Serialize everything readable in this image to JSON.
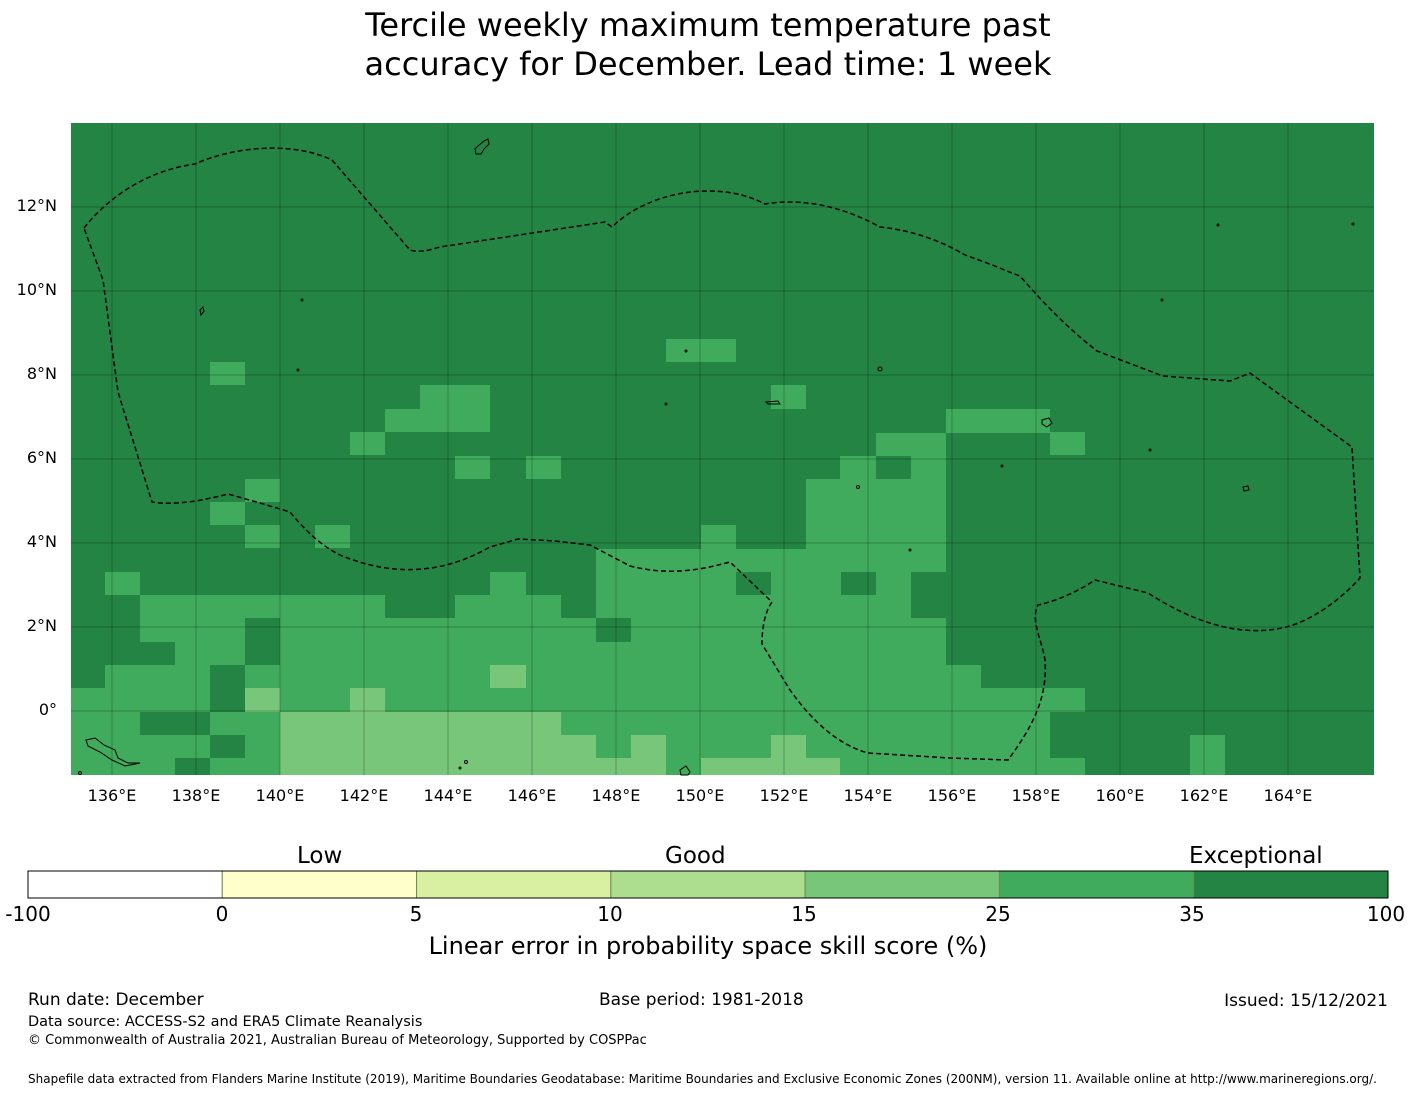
{
  "title": {
    "line1": "Tercile weekly maximum temperature past",
    "line2": "accuracy for December. Lead time: 1 week"
  },
  "map": {
    "lat_labels": [
      "12°N",
      "10°N",
      "8°N",
      "6°N",
      "4°N",
      "2°N",
      "0°"
    ],
    "lon_labels": [
      "136°E",
      "138°E",
      "140°E",
      "142°E",
      "144°E",
      "146°E",
      "148°E",
      "150°E",
      "152°E",
      "154°E",
      "156°E",
      "158°E",
      "160°E",
      "162°E",
      "164°E"
    ],
    "colors": {
      "exceptional": "#238443",
      "good_high": "#41ab5d",
      "good_mid": "#78c679",
      "good_low": "#addd8e",
      "boundary": "#000000"
    }
  },
  "legend": {
    "categories": [
      "Low",
      "Good",
      "Exceptional"
    ],
    "ticks": [
      "-100",
      "0",
      "5",
      "10",
      "15",
      "25",
      "35",
      "100"
    ],
    "colors": [
      "#ffffff",
      "#ffffcc",
      "#d9f0a3",
      "#addd8e",
      "#78c679",
      "#41ab5d",
      "#238443"
    ],
    "title": "Linear error in probability space skill score (%)"
  },
  "footer": {
    "run_date": "Run date: December",
    "base_period": "Base period: 1981-2018",
    "issued": "Issued: 15/12/2021",
    "data_source": "Data source: ACCESS-S2 and ERA5 Climate Reanalysis",
    "copyright": "© Commonwealth of Australia 2021, Australian Bureau of Meteorology, Supported by COSPPac",
    "shapefile": "Shapefile data extracted from Flanders Marine Institute (2019), Maritime Boundaries Geodatabase: Maritime Boundaries and Exclusive Economic Zones (200NM), version 11. Available online at http://www.marineregions.org/."
  }
}
